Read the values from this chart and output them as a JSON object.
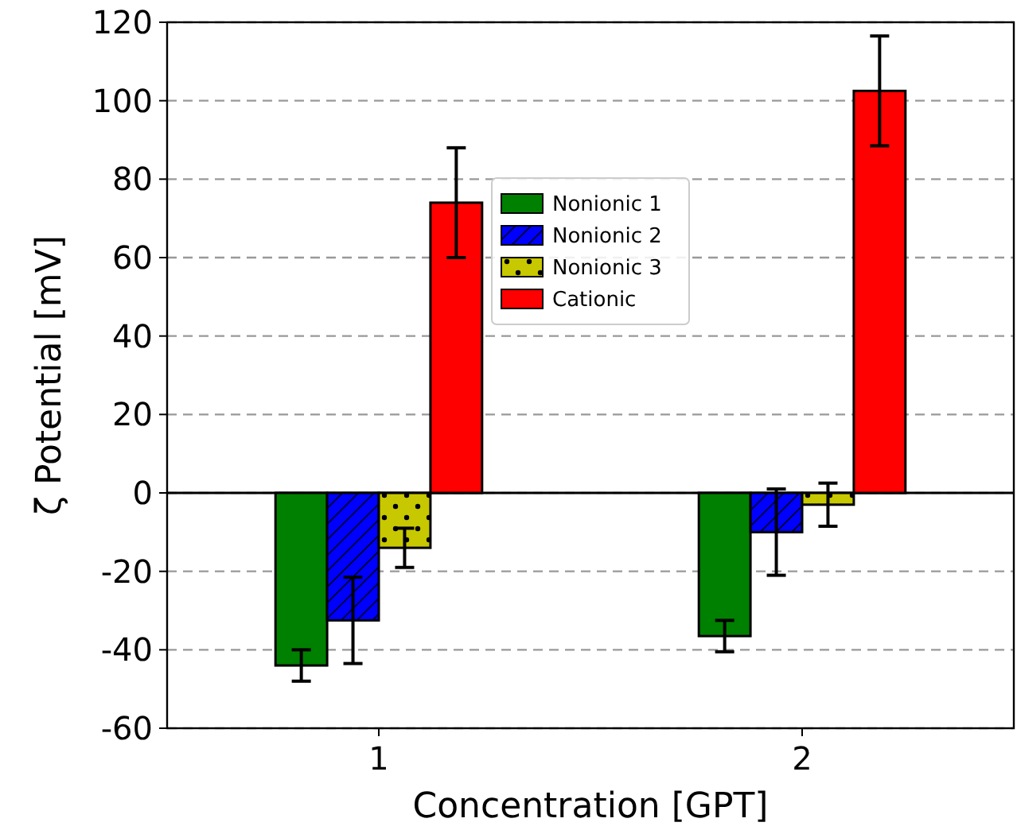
{
  "chart_data": {
    "type": "bar",
    "xlabel": "Concentration [GPT]",
    "ylabel": "ζ Potential [mV]",
    "categories": [
      "1",
      "2"
    ],
    "series": [
      {
        "name": "Nonionic 1",
        "color": "#008000",
        "values": [
          -44,
          -36.5
        ],
        "errors": [
          4,
          4
        ]
      },
      {
        "name": "Nonionic 2",
        "color": "#0000ff",
        "values": [
          -32.5,
          -10
        ],
        "errors": [
          11,
          11
        ]
      },
      {
        "name": "Nonionic 3",
        "color": "#c8c800",
        "values": [
          -14,
          -3
        ],
        "errors": [
          5,
          5.5
        ]
      },
      {
        "name": "Cationic",
        "color": "#ff0000",
        "values": [
          74,
          102.5
        ],
        "errors": [
          14,
          14
        ]
      }
    ],
    "ylim": [
      -60,
      120
    ],
    "yticks": [
      -60,
      -40,
      -20,
      0,
      20,
      40,
      60,
      80,
      100,
      120
    ],
    "grid": "y",
    "legend": "top center",
    "ref_lines": [
      {
        "axis": "y",
        "value": 0,
        "color": "#000000",
        "line_style": "solid"
      }
    ]
  }
}
